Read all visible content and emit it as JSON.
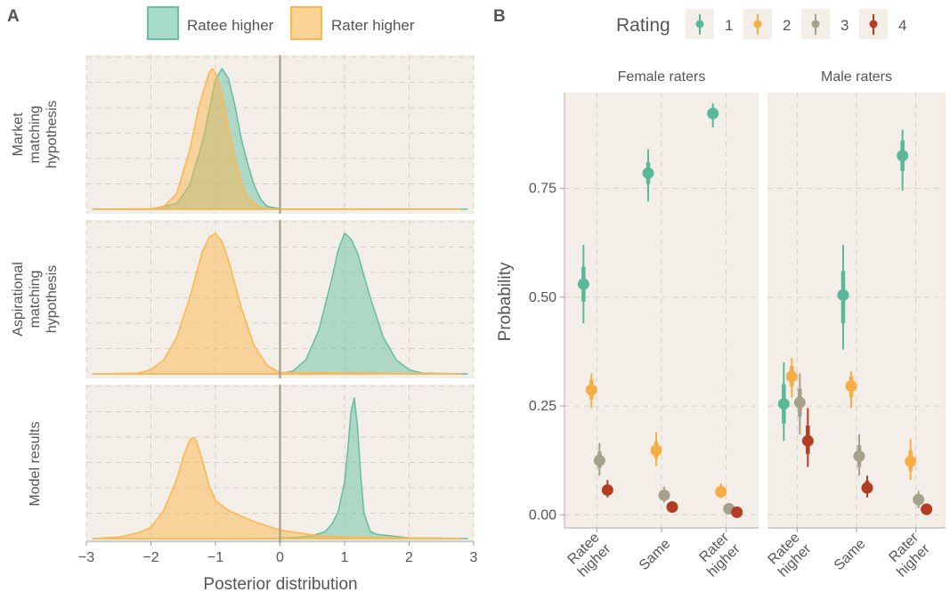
{
  "panel_letters": {
    "a": "A",
    "b": "B"
  },
  "colors": {
    "ratee": "#69bfa3",
    "rater": "#fcb84e",
    "panel_bg": "#f3efe8",
    "grid": "#d6d0c6",
    "zero_line": "#a89d83",
    "text": "#555555",
    "rating": [
      "#5ab79a",
      "#f6ad45",
      "#a6a18a",
      "#b23d22"
    ]
  },
  "chart_data": [
    {
      "type": "area",
      "panel": "A",
      "legend": {
        "position": "top",
        "entries": [
          "Ratee higher",
          "Rater higher"
        ]
      },
      "xlabel": "Posterior distribution",
      "xlim": [
        -3,
        3
      ],
      "xticks": [
        "−3",
        "−2",
        "−1",
        "0",
        "1",
        "2",
        "3"
      ],
      "xtick_values": [
        -3,
        -2,
        -1,
        0,
        1,
        2,
        3
      ],
      "grid": true,
      "vline_at": 0,
      "facets": [
        {
          "label": [
            "Market",
            "matching",
            "hypothesis"
          ],
          "series": [
            {
              "name": "Ratee higher",
              "x": [
                -2.9,
                -2.0,
                -1.6,
                -1.4,
                -1.2,
                -1.0,
                -0.9,
                -0.8,
                -0.7,
                -0.6,
                -0.5,
                -0.4,
                -0.3,
                -0.2,
                0.0,
                2.9
              ],
              "y": [
                0,
                0.001,
                0.04,
                0.17,
                0.48,
                0.92,
                1.0,
                0.93,
                0.74,
                0.5,
                0.32,
                0.17,
                0.07,
                0.02,
                0.002,
                0
              ]
            },
            {
              "name": "Rater higher",
              "x": [
                -2.9,
                -2.0,
                -1.8,
                -1.6,
                -1.4,
                -1.25,
                -1.1,
                -1.05,
                -1.0,
                -0.9,
                -0.8,
                -0.7,
                -0.6,
                -0.5,
                -0.3,
                -0.1,
                2.8
              ],
              "y": [
                0,
                0.003,
                0.02,
                0.11,
                0.42,
                0.74,
                0.97,
                1.0,
                0.97,
                0.82,
                0.58,
                0.36,
                0.19,
                0.08,
                0.01,
                0.002,
                0
              ]
            }
          ]
        },
        {
          "label": [
            "Aspirational",
            "matching",
            "hypothesis"
          ],
          "series": [
            {
              "name": "Ratee higher",
              "x": [
                -2.9,
                0.0,
                0.2,
                0.4,
                0.6,
                0.8,
                0.9,
                1.0,
                1.1,
                1.2,
                1.4,
                1.6,
                1.8,
                2.0,
                2.2,
                2.9
              ],
              "y": [
                0,
                0,
                0.02,
                0.1,
                0.31,
                0.67,
                0.88,
                1.0,
                0.96,
                0.86,
                0.54,
                0.26,
                0.1,
                0.03,
                0.005,
                0
              ]
            },
            {
              "name": "Rater higher",
              "x": [
                -2.9,
                -2.2,
                -2.0,
                -1.8,
                -1.6,
                -1.4,
                -1.2,
                -1.1,
                -1.0,
                -0.9,
                -0.8,
                -0.6,
                -0.4,
                -0.2,
                0.0,
                2.8
              ],
              "y": [
                0,
                0.005,
                0.03,
                0.1,
                0.26,
                0.54,
                0.87,
                0.97,
                1.0,
                0.94,
                0.81,
                0.47,
                0.2,
                0.06,
                0.01,
                0
              ]
            }
          ]
        },
        {
          "label": [
            "Model results"
          ],
          "series": [
            {
              "name": "Ratee higher",
              "x": [
                -2.9,
                -0.5,
                0.0,
                0.3,
                0.5,
                0.7,
                0.8,
                0.9,
                1.0,
                1.05,
                1.1,
                1.15,
                1.2,
                1.25,
                1.3,
                1.4,
                1.5,
                1.7,
                2.0,
                2.9
              ],
              "y": [
                0,
                0,
                0.003,
                0.01,
                0.02,
                0.05,
                0.1,
                0.19,
                0.4,
                0.63,
                0.9,
                1.0,
                0.8,
                0.45,
                0.18,
                0.05,
                0.03,
                0.02,
                0.005,
                0
              ]
            },
            {
              "name": "Rater higher",
              "x": [
                -2.9,
                -2.5,
                -2.2,
                -2.0,
                -1.8,
                -1.6,
                -1.5,
                -1.4,
                -1.35,
                -1.3,
                -1.2,
                -1.1,
                -1.0,
                -0.8,
                -0.6,
                -0.4,
                -0.2,
                0.0,
                0.3,
                0.6,
                1.0,
                2.8
              ],
              "y": [
                0,
                0.01,
                0.04,
                0.08,
                0.2,
                0.42,
                0.58,
                0.7,
                0.72,
                0.7,
                0.55,
                0.38,
                0.27,
                0.2,
                0.16,
                0.12,
                0.09,
                0.06,
                0.04,
                0.02,
                0.01,
                0
              ]
            }
          ]
        }
      ]
    },
    {
      "type": "scatter",
      "panel": "B",
      "legend": {
        "position": "top",
        "title": "Rating",
        "entries": [
          "1",
          "2",
          "3",
          "4"
        ]
      },
      "ylabel": "Probability",
      "ylim": [
        -0.03,
        0.97
      ],
      "yticks": [
        0.0,
        0.25,
        0.5,
        0.75
      ],
      "ytick_labels": [
        "0.00",
        "0.25",
        "0.50",
        "0.75"
      ],
      "categories": [
        [
          "Ratee",
          "higher"
        ],
        [
          "Same"
        ],
        [
          "Rater",
          "higher"
        ]
      ],
      "grid": true,
      "facets": [
        {
          "title": "Female raters",
          "series": [
            {
              "name": "1",
              "values": [
                0.53,
                0.785,
                0.922
              ],
              "inner": [
                [
                  0.49,
                  0.57
                ],
                [
                  0.76,
                  0.81
                ],
                [
                  0.91,
                  0.935
                ]
              ],
              "outer": [
                [
                  0.44,
                  0.62
                ],
                [
                  0.72,
                  0.84
                ],
                [
                  0.89,
                  0.945
                ]
              ]
            },
            {
              "name": "2",
              "values": [
                0.287,
                0.148,
                0.053
              ],
              "inner": [
                [
                  0.265,
                  0.31
                ],
                [
                  0.13,
                  0.168
                ],
                [
                  0.045,
                  0.062
                ]
              ],
              "outer": [
                [
                  0.245,
                  0.325
                ],
                [
                  0.112,
                  0.19
                ],
                [
                  0.038,
                  0.072
                ]
              ]
            },
            {
              "name": "3",
              "values": [
                0.125,
                0.045,
                0.014
              ],
              "inner": [
                [
                  0.108,
                  0.145
                ],
                [
                  0.037,
                  0.055
                ],
                [
                  0.009,
                  0.02
                ]
              ],
              "outer": [
                [
                  0.09,
                  0.165
                ],
                [
                  0.028,
                  0.065
                ],
                [
                  0.006,
                  0.026
                ]
              ]
            },
            {
              "name": "4",
              "values": [
                0.057,
                0.018,
                0.006
              ],
              "inner": [
                [
                  0.048,
                  0.068
                ],
                [
                  0.013,
                  0.024
                ],
                [
                  0.003,
                  0.009
                ]
              ],
              "outer": [
                [
                  0.04,
                  0.08
                ],
                [
                  0.009,
                  0.03
                ],
                [
                  0.002,
                  0.012
                ]
              ]
            }
          ]
        },
        {
          "title": "Male raters",
          "series": [
            {
              "name": "1",
              "values": [
                0.255,
                0.505,
                0.825
              ],
              "inner": [
                [
                  0.21,
                  0.3
                ],
                [
                  0.44,
                  0.56
                ],
                [
                  0.79,
                  0.86
                ]
              ],
              "outer": [
                [
                  0.17,
                  0.35
                ],
                [
                  0.38,
                  0.62
                ],
                [
                  0.745,
                  0.885
                ]
              ]
            },
            {
              "name": "2",
              "values": [
                0.318,
                0.296,
                0.123
              ],
              "inner": [
                [
                  0.295,
                  0.342
                ],
                [
                  0.27,
                  0.318
                ],
                [
                  0.1,
                  0.148
                ]
              ],
              "outer": [
                [
                  0.27,
                  0.36
                ],
                [
                  0.245,
                  0.33
                ],
                [
                  0.08,
                  0.175
                ]
              ]
            },
            {
              "name": "3",
              "values": [
                0.258,
                0.135,
                0.035
              ],
              "inner": [
                [
                  0.225,
                  0.29
                ],
                [
                  0.11,
                  0.16
                ],
                [
                  0.025,
                  0.045
                ]
              ],
              "outer": [
                [
                  0.185,
                  0.325
                ],
                [
                  0.09,
                  0.185
                ],
                [
                  0.015,
                  0.055
                ]
              ]
            },
            {
              "name": "4",
              "values": [
                0.17,
                0.062,
                0.013
              ],
              "inner": [
                [
                  0.14,
                  0.205
                ],
                [
                  0.05,
                  0.078
                ],
                [
                  0.009,
                  0.018
                ]
              ],
              "outer": [
                [
                  0.11,
                  0.245
                ],
                [
                  0.04,
                  0.09
                ],
                [
                  0.006,
                  0.023
                ]
              ]
            }
          ]
        }
      ]
    }
  ]
}
